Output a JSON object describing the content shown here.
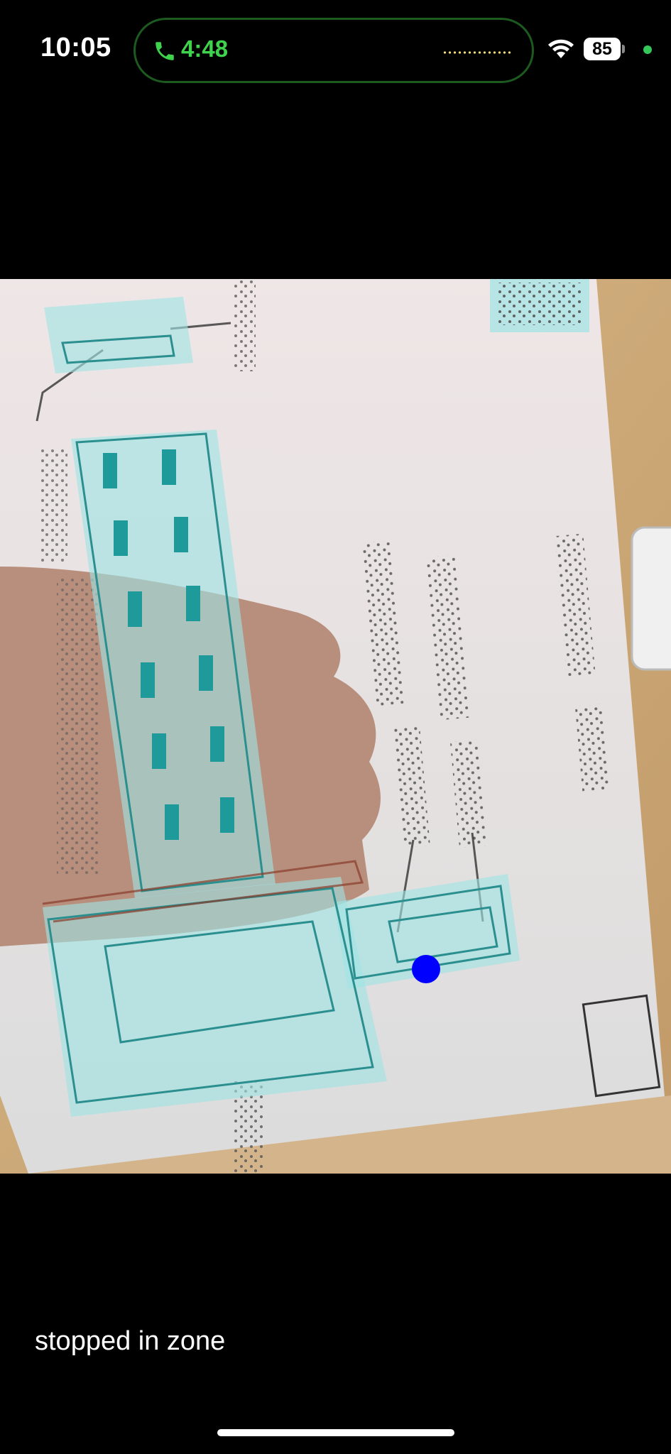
{
  "status_bar": {
    "time": "10:05",
    "call_timer": "4:48",
    "battery_level": "85",
    "icons": [
      "phone-icon",
      "wifi-icon",
      "battery-icon"
    ],
    "colors": {
      "call_green": "#3fd24c",
      "privacy_dot": "#34c759"
    }
  },
  "camera": {
    "overlay_color": "#9fe3e3",
    "marker_color": "#0000ff"
  },
  "status": {
    "message": "stopped in zone"
  }
}
